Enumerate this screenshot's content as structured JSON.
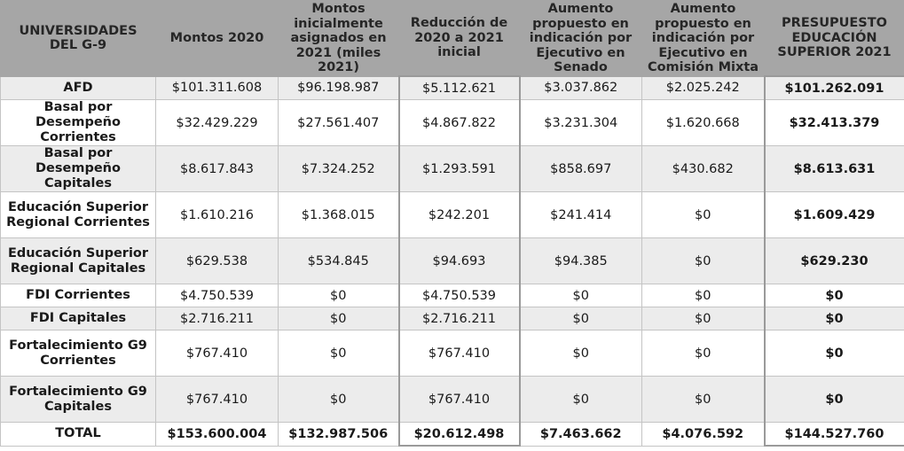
{
  "table": {
    "headers": [
      "UNIVERSIDADES DEL G-9",
      "Montos 2020",
      "Montos inicialmente asignados  en 2021 (miles 2021)",
      "Reducción de 2020 a 2021 inicial",
      "Aumento propuesto en indicación por Ejecutivo en Senado",
      "Aumento propuesto en indicación por Ejecutivo en Comisión Mixta",
      "PRESUPUESTO EDUCACIÓN SUPERIOR 2021"
    ],
    "rows": [
      {
        "label": "AFD",
        "values": [
          "$101.311.608",
          "$96.198.987",
          "$5.112.621",
          "$3.037.862",
          "$2.025.242",
          "$101.262.091"
        ]
      },
      {
        "label": "Basal por Desempeño Corrientes",
        "values": [
          "$32.429.229",
          "$27.561.407",
          "$4.867.822",
          "$3.231.304",
          "$1.620.668",
          "$32.413.379"
        ]
      },
      {
        "label": "Basal por Desempeño Capitales",
        "values": [
          "$8.617.843",
          "$7.324.252",
          "$1.293.591",
          "$858.697",
          "$430.682",
          "$8.613.631"
        ]
      },
      {
        "label": "Educación Superior Regional Corrientes",
        "values": [
          "$1.610.216",
          "$1.368.015",
          "$242.201",
          "$241.414",
          "$0",
          "$1.609.429"
        ]
      },
      {
        "label": "Educación Superior Regional Capitales",
        "values": [
          "$629.538",
          "$534.845",
          "$94.693",
          "$94.385",
          "$0",
          "$629.230"
        ]
      },
      {
        "label": "FDI Corrientes",
        "values": [
          "$4.750.539",
          "$0",
          "$4.750.539",
          "$0",
          "$0",
          "$0"
        ]
      },
      {
        "label": "FDI Capitales",
        "values": [
          "$2.716.211",
          "$0",
          "$2.716.211",
          "$0",
          "$0",
          "$0"
        ]
      },
      {
        "label": "Fortalecimiento G9 Corrientes",
        "values": [
          "$767.410",
          "$0",
          "$767.410",
          "$0",
          "$0",
          "$0"
        ]
      },
      {
        "label": "Fortalecimiento G9 Capitales",
        "values": [
          "$767.410",
          "$0",
          "$767.410",
          "$0",
          "$0",
          "$0"
        ]
      }
    ],
    "total": {
      "label": "TOTAL",
      "values": [
        "$153.600.004",
        "$132.987.506",
        "$20.612.498",
        "$7.463.662",
        "$4.076.592",
        "$144.527.760"
      ]
    }
  },
  "colors": {
    "header_bg": "#a6a6a6",
    "row_shade": "#ececec",
    "row_white": "#ffffff",
    "frame": "#9a9a9a"
  }
}
